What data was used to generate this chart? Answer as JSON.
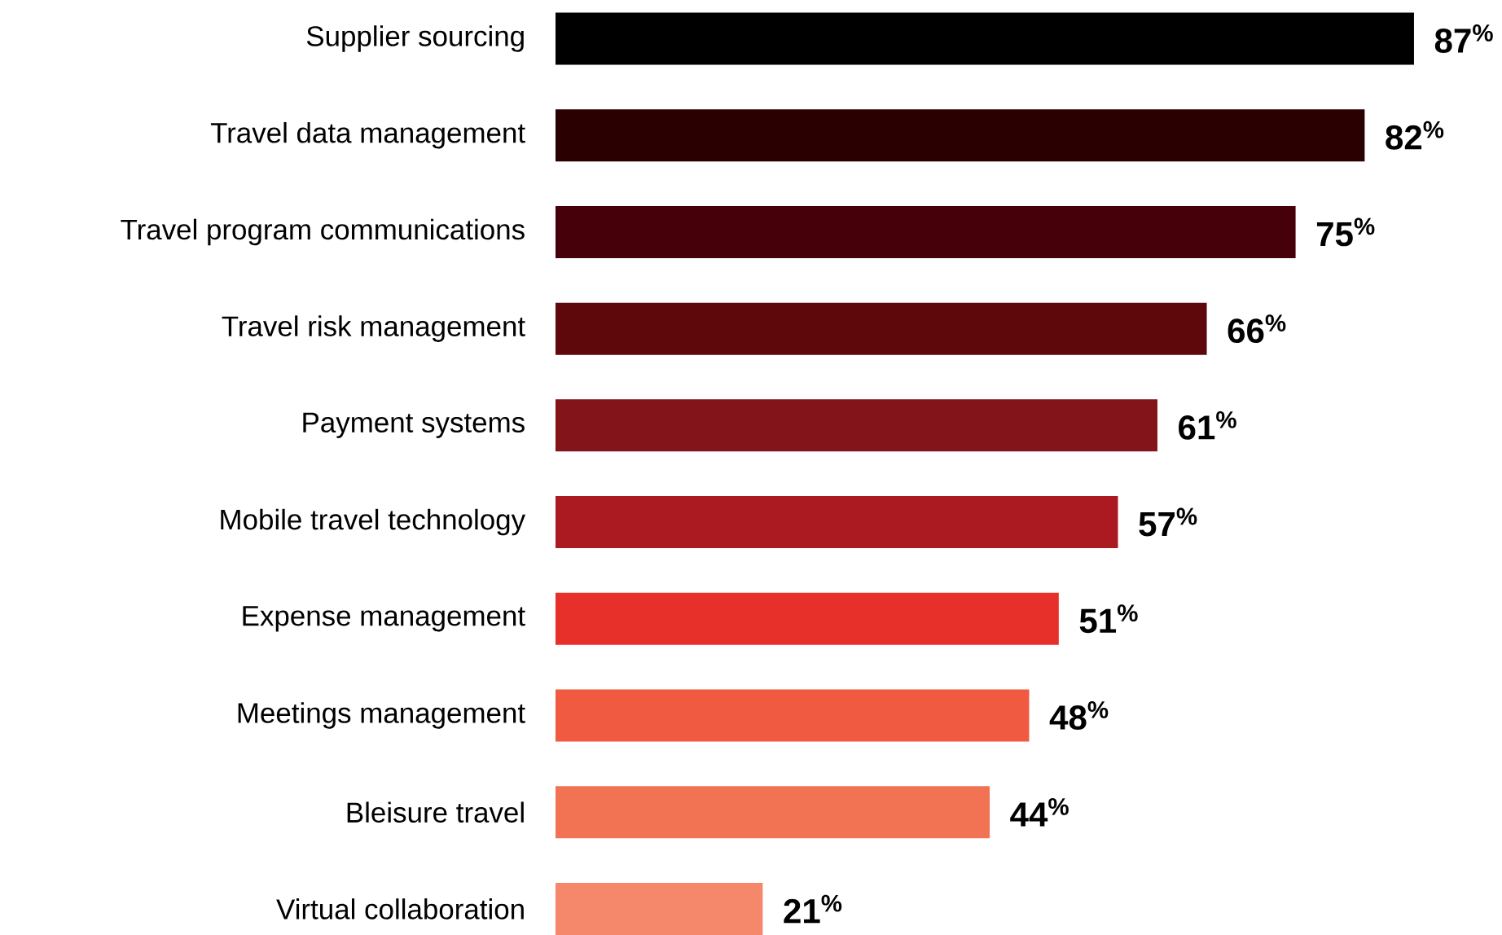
{
  "chart_data": {
    "type": "bar",
    "orientation": "horizontal",
    "categories": [
      "Supplier sourcing",
      "Travel data management",
      "Travel program communications",
      "Travel risk management",
      "Payment systems",
      "Mobile travel technology",
      "Expense management",
      "Meetings management",
      "Bleisure travel",
      "Virtual collaboration"
    ],
    "values": [
      87,
      82,
      75,
      66,
      61,
      57,
      51,
      48,
      44,
      21
    ],
    "colors": [
      "#000000",
      "#2a0000",
      "#45000a",
      "#5e080c",
      "#83151a",
      "#aa1a20",
      "#e8302a",
      "#f05a40",
      "#f27254",
      "#f5886a"
    ],
    "value_labels": [
      "87$^{%}$",
      "82$^{%}$",
      "75$^{%}$",
      "66$^{%}$",
      "61$^{%}$",
      "57$^{%}$",
      "51$^{%}$",
      "48$^{%}$",
      "44$^{%}$",
      "21$^{%}$"
    ]
  }
}
